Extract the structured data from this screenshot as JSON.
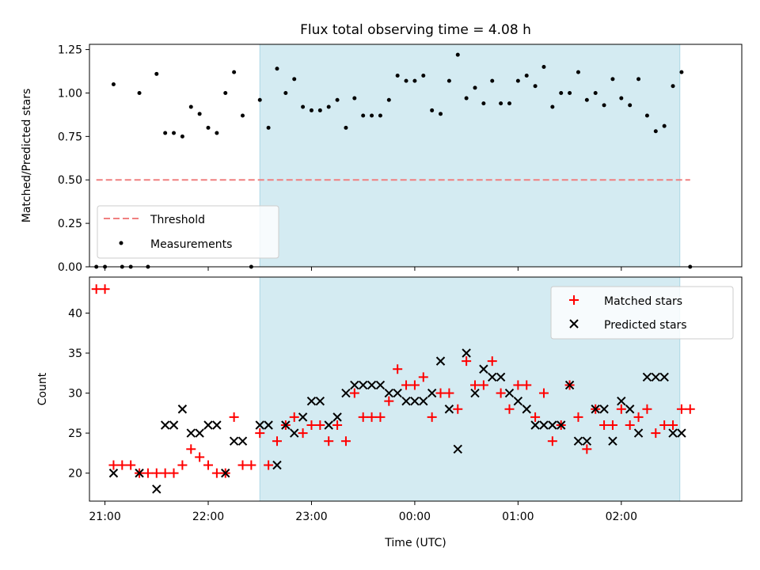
{
  "chart_data": [
    {
      "type": "scatter",
      "title": "Flux total observing time = 4.08 h",
      "xlabel": "",
      "ylabel": "Matched/Predicted stars",
      "ylim": [
        0,
        1.28
      ],
      "yticks": [
        "0.00",
        "0.25",
        "0.50",
        "0.75",
        "1.00",
        "1.25"
      ],
      "xlim": [
        "20:51",
        "03:10"
      ],
      "shaded_interval": [
        "22:30",
        "02:34"
      ],
      "shade_color": "#d4ebf2",
      "threshold": {
        "name": "Threshold",
        "value": 0.5,
        "x": [
          "20:55",
          "02:40"
        ],
        "color": "#f08080"
      },
      "measurements": {
        "name": "Measurements",
        "color": "#000000",
        "points": [
          [
            "20:55",
            0.0
          ],
          [
            "21:00",
            0.0
          ],
          [
            "21:05",
            1.05
          ],
          [
            "21:10",
            0.0
          ],
          [
            "21:15",
            0.0
          ],
          [
            "21:20",
            1.0
          ],
          [
            "21:25",
            0.0
          ],
          [
            "21:30",
            1.11
          ],
          [
            "21:35",
            0.77
          ],
          [
            "21:40",
            0.77
          ],
          [
            "21:45",
            0.75
          ],
          [
            "21:50",
            0.92
          ],
          [
            "21:55",
            0.88
          ],
          [
            "22:00",
            0.8
          ],
          [
            "22:05",
            0.77
          ],
          [
            "22:10",
            1.0
          ],
          [
            "22:15",
            1.12
          ],
          [
            "22:20",
            0.87
          ],
          [
            "22:25",
            0.0
          ],
          [
            "22:30",
            0.96
          ],
          [
            "22:35",
            0.8
          ],
          [
            "22:40",
            1.14
          ],
          [
            "22:45",
            1.0
          ],
          [
            "22:50",
            1.08
          ],
          [
            "22:55",
            0.92
          ],
          [
            "23:00",
            0.9
          ],
          [
            "23:05",
            0.9
          ],
          [
            "23:10",
            0.92
          ],
          [
            "23:15",
            0.96
          ],
          [
            "23:20",
            0.8
          ],
          [
            "23:25",
            0.97
          ],
          [
            "23:30",
            0.87
          ],
          [
            "23:35",
            0.87
          ],
          [
            "23:40",
            0.87
          ],
          [
            "23:45",
            0.96
          ],
          [
            "23:50",
            1.1
          ],
          [
            "23:55",
            1.07
          ],
          [
            "00:00",
            1.07
          ],
          [
            "00:05",
            1.1
          ],
          [
            "00:10",
            0.9
          ],
          [
            "00:15",
            0.88
          ],
          [
            "00:20",
            1.07
          ],
          [
            "00:25",
            1.22
          ],
          [
            "00:30",
            0.97
          ],
          [
            "00:35",
            1.03
          ],
          [
            "00:40",
            0.94
          ],
          [
            "00:45",
            1.07
          ],
          [
            "00:50",
            0.94
          ],
          [
            "00:55",
            0.94
          ],
          [
            "01:00",
            1.07
          ],
          [
            "01:05",
            1.1
          ],
          [
            "01:10",
            1.04
          ],
          [
            "01:15",
            1.15
          ],
          [
            "01:20",
            0.92
          ],
          [
            "01:25",
            1.0
          ],
          [
            "01:30",
            1.0
          ],
          [
            "01:35",
            1.12
          ],
          [
            "01:40",
            0.96
          ],
          [
            "01:45",
            1.0
          ],
          [
            "01:50",
            0.93
          ],
          [
            "01:55",
            1.08
          ],
          [
            "02:00",
            0.97
          ],
          [
            "02:05",
            0.93
          ],
          [
            "02:10",
            1.08
          ],
          [
            "02:15",
            0.87
          ],
          [
            "02:20",
            0.78
          ],
          [
            "02:25",
            0.81
          ],
          [
            "02:30",
            1.04
          ],
          [
            "02:35",
            1.12
          ],
          [
            "02:40",
            0.0
          ]
        ]
      },
      "legend_position": "lower-left"
    },
    {
      "type": "scatter",
      "xlabel": "Time (UTC)",
      "ylabel": "Count",
      "ylim": [
        16.5,
        44.5
      ],
      "yticks": [
        "20",
        "25",
        "30",
        "35",
        "40"
      ],
      "xlim": [
        "20:51",
        "03:10"
      ],
      "xticks": [
        "21:00",
        "22:00",
        "23:00",
        "00:00",
        "01:00",
        "02:00"
      ],
      "shaded_interval": [
        "22:30",
        "02:34"
      ],
      "shade_color": "#d4ebf2",
      "series": [
        {
          "name": "Matched stars",
          "marker": "plus",
          "color": "#ff0000",
          "points": [
            [
              "20:55",
              43
            ],
            [
              "21:00",
              43
            ],
            [
              "21:05",
              21
            ],
            [
              "21:10",
              21
            ],
            [
              "21:15",
              21
            ],
            [
              "21:20",
              20
            ],
            [
              "21:25",
              20
            ],
            [
              "21:30",
              20
            ],
            [
              "21:35",
              20
            ],
            [
              "21:40",
              20
            ],
            [
              "21:45",
              21
            ],
            [
              "21:50",
              23
            ],
            [
              "21:55",
              22
            ],
            [
              "22:00",
              21
            ],
            [
              "22:05",
              20
            ],
            [
              "22:10",
              20
            ],
            [
              "22:15",
              27
            ],
            [
              "22:20",
              21
            ],
            [
              "22:25",
              21
            ],
            [
              "22:30",
              25
            ],
            [
              "22:35",
              21
            ],
            [
              "22:40",
              24
            ],
            [
              "22:45",
              26
            ],
            [
              "22:50",
              27
            ],
            [
              "22:55",
              25
            ],
            [
              "23:00",
              26
            ],
            [
              "23:05",
              26
            ],
            [
              "23:10",
              24
            ],
            [
              "23:15",
              26
            ],
            [
              "23:20",
              24
            ],
            [
              "23:25",
              30
            ],
            [
              "23:30",
              27
            ],
            [
              "23:35",
              27
            ],
            [
              "23:40",
              27
            ],
            [
              "23:45",
              29
            ],
            [
              "23:50",
              33
            ],
            [
              "23:55",
              31
            ],
            [
              "00:00",
              31
            ],
            [
              "00:05",
              32
            ],
            [
              "00:10",
              27
            ],
            [
              "00:15",
              30
            ],
            [
              "00:20",
              30
            ],
            [
              "00:25",
              28
            ],
            [
              "00:30",
              34
            ],
            [
              "00:35",
              31
            ],
            [
              "00:40",
              31
            ],
            [
              "00:45",
              34
            ],
            [
              "00:50",
              30
            ],
            [
              "00:55",
              28
            ],
            [
              "01:00",
              31
            ],
            [
              "01:05",
              31
            ],
            [
              "01:10",
              27
            ],
            [
              "01:15",
              30
            ],
            [
              "01:20",
              24
            ],
            [
              "01:25",
              26
            ],
            [
              "01:30",
              31
            ],
            [
              "01:35",
              27
            ],
            [
              "01:40",
              23
            ],
            [
              "01:45",
              28
            ],
            [
              "01:50",
              26
            ],
            [
              "01:55",
              26
            ],
            [
              "02:00",
              28
            ],
            [
              "02:05",
              26
            ],
            [
              "02:10",
              27
            ],
            [
              "02:15",
              28
            ],
            [
              "02:20",
              25
            ],
            [
              "02:25",
              26
            ],
            [
              "02:30",
              26
            ],
            [
              "02:35",
              28
            ],
            [
              "02:40",
              28
            ]
          ]
        },
        {
          "name": "Predicted stars",
          "marker": "x",
          "color": "#000000",
          "points": [
            [
              "21:05",
              20
            ],
            [
              "21:20",
              20
            ],
            [
              "21:30",
              18
            ],
            [
              "21:35",
              26
            ],
            [
              "21:40",
              26
            ],
            [
              "21:45",
              28
            ],
            [
              "21:50",
              25
            ],
            [
              "21:55",
              25
            ],
            [
              "22:00",
              26
            ],
            [
              "22:05",
              26
            ],
            [
              "22:10",
              20
            ],
            [
              "22:15",
              24
            ],
            [
              "22:20",
              24
            ],
            [
              "22:30",
              26
            ],
            [
              "22:35",
              26
            ],
            [
              "22:40",
              21
            ],
            [
              "22:45",
              26
            ],
            [
              "22:50",
              25
            ],
            [
              "22:55",
              27
            ],
            [
              "23:00",
              29
            ],
            [
              "23:05",
              29
            ],
            [
              "23:10",
              26
            ],
            [
              "23:15",
              27
            ],
            [
              "23:20",
              30
            ],
            [
              "23:25",
              31
            ],
            [
              "23:30",
              31
            ],
            [
              "23:35",
              31
            ],
            [
              "23:40",
              31
            ],
            [
              "23:45",
              30
            ],
            [
              "23:50",
              30
            ],
            [
              "23:55",
              29
            ],
            [
              "00:00",
              29
            ],
            [
              "00:05",
              29
            ],
            [
              "00:10",
              30
            ],
            [
              "00:15",
              34
            ],
            [
              "00:20",
              28
            ],
            [
              "00:25",
              23
            ],
            [
              "00:30",
              35
            ],
            [
              "00:35",
              30
            ],
            [
              "00:40",
              33
            ],
            [
              "00:45",
              32
            ],
            [
              "00:50",
              32
            ],
            [
              "00:55",
              30
            ],
            [
              "01:00",
              29
            ],
            [
              "01:05",
              28
            ],
            [
              "01:10",
              26
            ],
            [
              "01:15",
              26
            ],
            [
              "01:20",
              26
            ],
            [
              "01:25",
              26
            ],
            [
              "01:30",
              31
            ],
            [
              "01:35",
              24
            ],
            [
              "01:40",
              24
            ],
            [
              "01:45",
              28
            ],
            [
              "01:50",
              28
            ],
            [
              "01:55",
              24
            ],
            [
              "02:00",
              29
            ],
            [
              "02:05",
              28
            ],
            [
              "02:10",
              25
            ],
            [
              "02:15",
              32
            ],
            [
              "02:20",
              32
            ],
            [
              "02:25",
              32
            ],
            [
              "02:30",
              25
            ],
            [
              "02:35",
              25
            ]
          ]
        }
      ],
      "legend_position": "upper-right"
    }
  ]
}
